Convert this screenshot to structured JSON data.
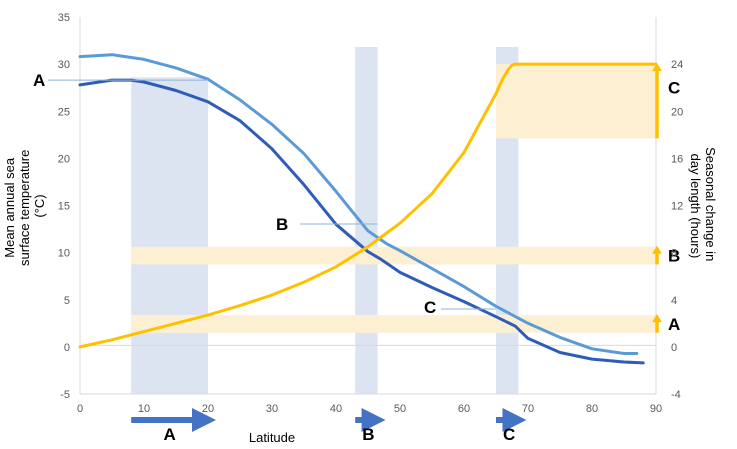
{
  "chart_data": {
    "type": "line",
    "title": "",
    "xlabel": "Latitude",
    "ylabel_left": "Mean annual sea surface temperature (°C)",
    "ylabel_left_lines": [
      "Mean annual sea",
      "surface temperature",
      "(°C)"
    ],
    "ylabel_right": "Seasonal change in day length (hours)",
    "ylabel_right_lines": [
      "Seasonal change in",
      "day length (hours)"
    ],
    "xlim": [
      0,
      90
    ],
    "ylim_left": [
      -5,
      35
    ],
    "ylim_right": [
      -4,
      28
    ],
    "x_ticks": [
      0,
      10,
      20,
      30,
      40,
      50,
      60,
      70,
      80,
      90
    ],
    "y_ticks_left": [
      -5,
      0,
      5,
      10,
      15,
      20,
      25,
      30,
      35
    ],
    "y_ticks_right": [
      -4,
      0,
      4,
      8,
      12,
      16,
      20,
      24
    ],
    "gridlines": false,
    "series": [
      {
        "axis": "left",
        "color": "#5B9BD5",
        "x": [
          0,
          5,
          10,
          15,
          20,
          25,
          30,
          35,
          40,
          45,
          48,
          50,
          55,
          60,
          65,
          70,
          75,
          80,
          85,
          87
        ],
        "y": [
          30.8,
          31.0,
          30.5,
          29.6,
          28.4,
          26.2,
          23.6,
          20.5,
          16.5,
          12.3,
          10.9,
          10.2,
          8.3,
          6.4,
          4.3,
          2.5,
          1.0,
          -0.2,
          -0.7,
          -0.7
        ]
      },
      {
        "axis": "left",
        "color": "#2F5CB8",
        "x": [
          0,
          5,
          8,
          10,
          15,
          20,
          25,
          30,
          35,
          40,
          45,
          47,
          50,
          55,
          60,
          65,
          68,
          70,
          75,
          80,
          85,
          88
        ],
        "y": [
          27.8,
          28.3,
          28.3,
          28.1,
          27.2,
          26.0,
          24.0,
          21.0,
          17.2,
          13.0,
          10.1,
          9.3,
          7.9,
          6.3,
          4.8,
          3.2,
          2.2,
          0.9,
          -0.6,
          -1.3,
          -1.6,
          -1.7
        ]
      },
      {
        "axis": "right",
        "color": "#FFC000",
        "x": [
          0,
          5,
          10,
          15,
          20,
          25,
          30,
          35,
          40,
          45,
          50,
          55,
          60,
          63,
          65,
          66,
          67,
          67.5,
          68,
          70,
          90
        ],
        "y": [
          0,
          0.6,
          1.3,
          2.0,
          2.7,
          3.5,
          4.4,
          5.5,
          6.8,
          8.5,
          10.5,
          13.0,
          16.5,
          19.5,
          21.5,
          22.7,
          23.6,
          23.9,
          24.0,
          24.0,
          24.0
        ]
      }
    ],
    "shaded_latitude_bands": [
      {
        "label": "A",
        "x": [
          8,
          20
        ]
      },
      {
        "label": "B",
        "x": [
          43,
          46.5
        ]
      },
      {
        "label": "C",
        "x": [
          65,
          68.5
        ]
      }
    ],
    "shaded_daylength_bands": [
      {
        "label": "A",
        "y": [
          1.2,
          2.7
        ]
      },
      {
        "label": "B",
        "y": [
          7.0,
          8.5
        ]
      },
      {
        "label": "C",
        "y": [
          17.7,
          24.0
        ]
      }
    ],
    "annotations": [
      {
        "label": "A",
        "x": 0,
        "y_left": 28.3,
        "side": "left"
      },
      {
        "label": "B",
        "x": 46.5,
        "y_left": 12.2
      },
      {
        "label": "C",
        "x": 65,
        "y_left": 3.9
      },
      {
        "label": "A",
        "side": "right",
        "y_right": [
          1.2,
          2.7
        ]
      },
      {
        "label": "B",
        "side": "right",
        "y_right": [
          7.0,
          8.5
        ]
      },
      {
        "label": "C",
        "side": "right",
        "y_right": [
          17.7,
          24.0
        ]
      }
    ],
    "colors": {
      "band_blue": "#DCE4F2",
      "band_yellow": "#FDF0D2",
      "latitude_arrow": "#4472C4",
      "daylength_arrow": "#FFC000",
      "annotation_line": "#8EB4D8",
      "tick_text": "#595959"
    }
  }
}
